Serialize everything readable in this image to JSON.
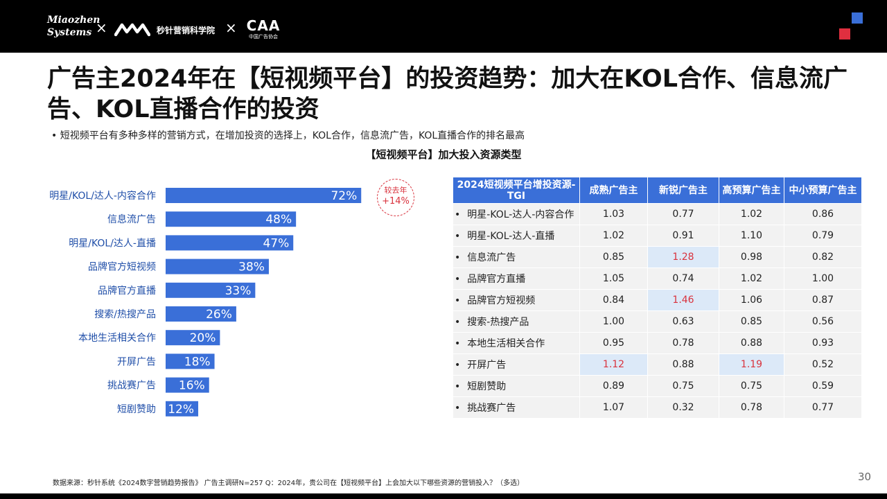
{
  "header": {
    "brand1_line1": "Miaozhen",
    "brand1_line2": "Systems",
    "cross": "×",
    "brand2": "秒针营销科学院",
    "brand3": "CAA",
    "brand3_sub": "中国广告协会"
  },
  "title": "广告主2024年在【短视频平台】的投资趋势：加大在KOL合作、信息流广告、KOL直播合作的投资",
  "bullet": "•  短视频平台有多种多样的营销方式，在增加投资的选择上，KOL合作，信息流广告，KOL直播合作的排名最高",
  "chart_title": "【短视频平台】加大投入资源类型",
  "badge": {
    "line1": "较去年",
    "line2": "+14%"
  },
  "chart_data": {
    "type": "bar",
    "orientation": "horizontal",
    "title": "【短视频平台】加大投入资源类型",
    "categories": [
      "明星/KOL/达人-内容合作",
      "信息流广告",
      "明星/KOL/达人-直播",
      "品牌官方短视频",
      "品牌官方直播",
      "搜索/热搜产品",
      "本地生活相关合作",
      "开屏广告",
      "挑战赛广告",
      "短剧赞助"
    ],
    "values": [
      72,
      48,
      47,
      38,
      33,
      26,
      20,
      18,
      16,
      12
    ],
    "value_labels": [
      "72%",
      "48%",
      "47%",
      "38%",
      "33%",
      "26%",
      "20%",
      "18%",
      "16%",
      "12%"
    ],
    "xlim": [
      0,
      100
    ],
    "bar_color": "#3a6fd8",
    "grid": false
  },
  "table": {
    "headers": [
      "2024短视频平台增投资源-TGI",
      "成熟广告主",
      "新锐广告主",
      "高预算广告主",
      "中小预算广告主"
    ],
    "rows": [
      {
        "name": "明星-KOL-达人-内容合作",
        "values": [
          "1.03",
          "0.77",
          "1.02",
          "0.86"
        ]
      },
      {
        "name": "明星-KOL-达人-直播",
        "values": [
          "1.02",
          "0.91",
          "1.10",
          "0.79"
        ]
      },
      {
        "name": "信息流广告",
        "values": [
          "0.85",
          "1.28",
          "0.98",
          "0.82"
        ]
      },
      {
        "name": "品牌官方直播",
        "values": [
          "1.05",
          "0.74",
          "1.02",
          "1.00"
        ]
      },
      {
        "name": "品牌官方短视频",
        "values": [
          "0.84",
          "1.46",
          "1.06",
          "0.87"
        ]
      },
      {
        "name": "搜索-热搜产品",
        "values": [
          "1.00",
          "0.63",
          "0.85",
          "0.56"
        ]
      },
      {
        "name": "本地生活相关合作",
        "values": [
          "0.95",
          "0.78",
          "0.88",
          "0.93"
        ]
      },
      {
        "name": "开屏广告",
        "values": [
          "1.12",
          "0.88",
          "1.19",
          "0.52"
        ]
      },
      {
        "name": "短剧赞助",
        "values": [
          "0.89",
          "0.75",
          "0.75",
          "0.59"
        ]
      },
      {
        "name": "挑战赛广告",
        "values": [
          "1.07",
          "0.32",
          "0.78",
          "0.77"
        ]
      }
    ],
    "highlight_threshold": 1.1
  },
  "colors": {
    "accent_blue": "#3a6fd8",
    "accent_red": "#d9323d",
    "cell_bg": "#f2f2f2",
    "highlight_bg": "#dce9f8"
  },
  "source": "数据来源：秒针系统《2024数字营销趋势报告》 广告主调研N=257    Q：2024年，贵公司在【短视频平台】上会加大以下哪些资源的营销投入？（多选）",
  "page_number": "30"
}
